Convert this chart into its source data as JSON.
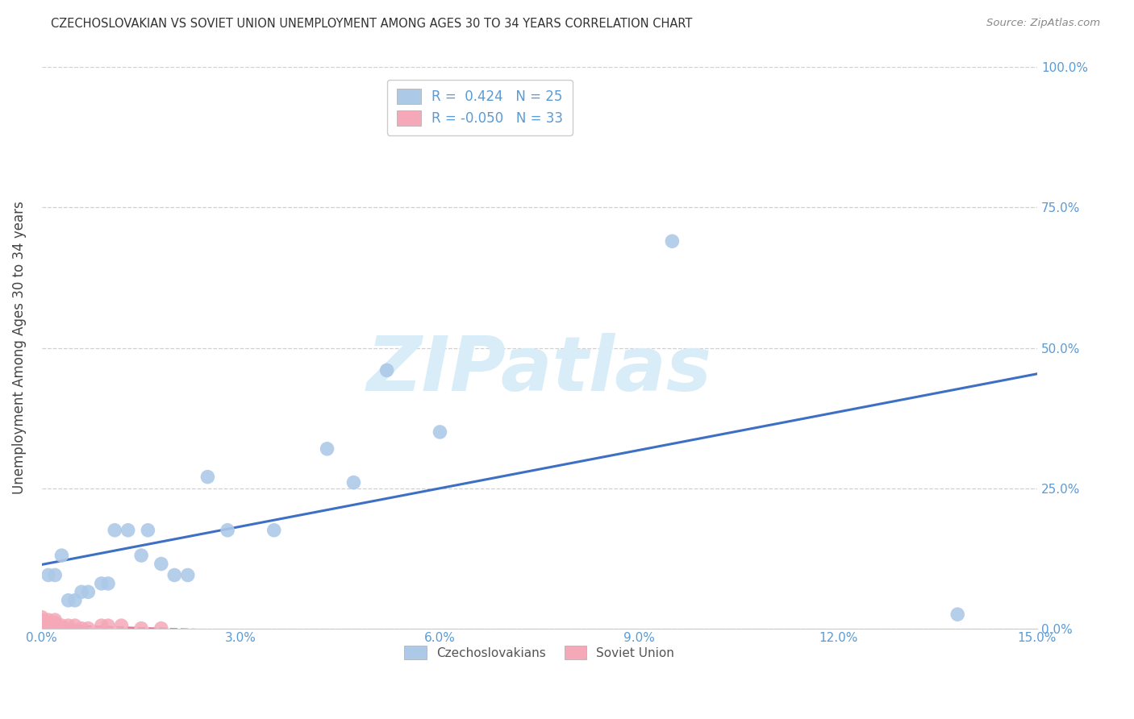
{
  "title": "CZECHOSLOVAKIAN VS SOVIET UNION UNEMPLOYMENT AMONG AGES 30 TO 34 YEARS CORRELATION CHART",
  "source": "Source: ZipAtlas.com",
  "ylabel": "Unemployment Among Ages 30 to 34 years",
  "xlim": [
    0.0,
    0.15
  ],
  "ylim": [
    0.0,
    1.0
  ],
  "xticks": [
    0.0,
    0.03,
    0.06,
    0.09,
    0.12,
    0.15
  ],
  "xticklabels": [
    "0.0%",
    "3.0%",
    "6.0%",
    "9.0%",
    "12.0%",
    "15.0%"
  ],
  "yticks": [
    0.0,
    0.25,
    0.5,
    0.75,
    1.0
  ],
  "yticklabels": [
    "0.0%",
    "25.0%",
    "50.0%",
    "75.0%",
    "100.0%"
  ],
  "czech_color": "#adc9e8",
  "soviet_color": "#f4a8b8",
  "czech_line_color": "#3d6fc4",
  "soviet_line_color": "#e87898",
  "czech_R": 0.424,
  "czech_N": 25,
  "soviet_R": -0.05,
  "soviet_N": 33,
  "czech_x": [
    0.001,
    0.002,
    0.003,
    0.004,
    0.005,
    0.006,
    0.007,
    0.009,
    0.01,
    0.011,
    0.013,
    0.015,
    0.016,
    0.018,
    0.02,
    0.022,
    0.025,
    0.028,
    0.035,
    0.043,
    0.047,
    0.052,
    0.06,
    0.095,
    0.138
  ],
  "czech_y": [
    0.095,
    0.095,
    0.13,
    0.05,
    0.05,
    0.065,
    0.065,
    0.08,
    0.08,
    0.175,
    0.175,
    0.13,
    0.175,
    0.115,
    0.095,
    0.095,
    0.27,
    0.175,
    0.175,
    0.32,
    0.26,
    0.46,
    0.35,
    0.69,
    0.025
  ],
  "soviet_x": [
    0.0,
    0.0,
    0.0,
    0.0,
    0.0,
    0.0,
    0.0,
    0.0,
    0.0,
    0.001,
    0.001,
    0.001,
    0.001,
    0.001,
    0.001,
    0.002,
    0.002,
    0.002,
    0.002,
    0.002,
    0.002,
    0.003,
    0.003,
    0.003,
    0.004,
    0.005,
    0.006,
    0.007,
    0.009,
    0.01,
    0.012,
    0.015,
    0.018
  ],
  "soviet_y": [
    0.0,
    0.0,
    0.0,
    0.005,
    0.005,
    0.01,
    0.01,
    0.015,
    0.02,
    0.0,
    0.0,
    0.005,
    0.005,
    0.01,
    0.015,
    0.0,
    0.0,
    0.005,
    0.005,
    0.01,
    0.015,
    0.0,
    0.0,
    0.005,
    0.005,
    0.005,
    0.0,
    0.0,
    0.005,
    0.005,
    0.005,
    0.0,
    0.0
  ],
  "watermark_text": "ZIPatlas",
  "watermark_color": "#d8edf8",
  "background_color": "#ffffff",
  "grid_color": "#d0d0d0",
  "axis_tick_color": "#5b9bd5",
  "ylabel_color": "#444444",
  "title_color": "#333333",
  "source_color": "#888888",
  "legend_text_color": "#5b9bd5"
}
